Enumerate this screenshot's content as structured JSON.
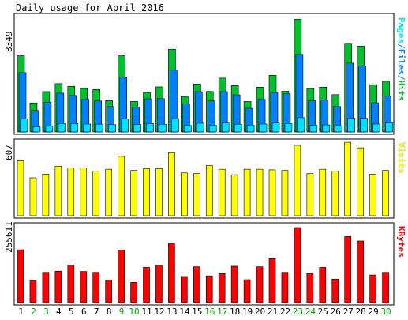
{
  "title": "Daily usage for April 2016",
  "colors": {
    "background": "#ffffff",
    "panel_border": "#000000",
    "hits": "#00c030",
    "files": "#0080ff",
    "pages": "#00e0ff",
    "visits": "#ffff00",
    "kbytes": "#ff0000",
    "weekend_label": "#00a000",
    "weekday_label": "#000000"
  },
  "chart_data": [
    {
      "type": "bar",
      "panel": "top",
      "ymax_label": "8349",
      "ymax": 8349,
      "legend": [
        {
          "text": "Pages",
          "color": "#00e0ff"
        },
        {
          "text": "/",
          "color": "#0080ff"
        },
        {
          "text": "Files",
          "color": "#0080ff"
        },
        {
          "text": "/",
          "color": "#0080ff"
        },
        {
          "text": "Hits",
          "color": "#00c030"
        }
      ],
      "categories": [
        "1",
        "2",
        "3",
        "4",
        "5",
        "6",
        "7",
        "8",
        "9",
        "10",
        "11",
        "12",
        "13",
        "14",
        "15",
        "16",
        "17",
        "18",
        "19",
        "20",
        "21",
        "22",
        "23",
        "24",
        "25",
        "26",
        "27",
        "28",
        "29",
        "30"
      ],
      "series": [
        {
          "name": "Hits",
          "values": [
            5480,
            2090,
            2900,
            3470,
            3280,
            3120,
            3050,
            2250,
            5480,
            2200,
            2840,
            3240,
            5950,
            2550,
            3450,
            2910,
            3870,
            3330,
            2190,
            3220,
            4070,
            2930,
            8110,
            3120,
            3220,
            2680,
            6320,
            6170,
            3400,
            3640
          ]
        },
        {
          "name": "Files",
          "values": [
            4270,
            1550,
            2140,
            2790,
            2620,
            2350,
            2230,
            1830,
            3950,
            1780,
            2380,
            2400,
            4450,
            2020,
            2900,
            2230,
            2900,
            2670,
            1700,
            2350,
            2840,
            2740,
            5580,
            2240,
            2300,
            1830,
            4950,
            4750,
            2100,
            2580
          ]
        },
        {
          "name": "Pages",
          "values": [
            950,
            380,
            440,
            590,
            600,
            570,
            560,
            530,
            940,
            540,
            600,
            550,
            960,
            470,
            630,
            480,
            640,
            560,
            490,
            570,
            640,
            590,
            1030,
            470,
            510,
            460,
            1000,
            980,
            570,
            650
          ]
        }
      ]
    },
    {
      "type": "bar",
      "panel": "middle",
      "ymax_label": "607",
      "ymax": 607,
      "legend": [
        {
          "text": "Visits",
          "color": "#ffff00"
        }
      ],
      "series": [
        {
          "name": "Visits",
          "values": [
            450,
            310,
            340,
            405,
            390,
            390,
            365,
            380,
            485,
            370,
            385,
            385,
            515,
            350,
            345,
            410,
            380,
            335,
            380,
            380,
            375,
            370,
            575,
            345,
            380,
            365,
            600,
            555,
            340,
            370
          ]
        }
      ]
    },
    {
      "type": "bar",
      "panel": "bottom",
      "ymax_label": "255611",
      "ymax": 255611,
      "legend": [
        {
          "text": "KBytes",
          "color": "#ff0000"
        }
      ],
      "series": [
        {
          "name": "KBytes",
          "values": [
            180000,
            74000,
            103000,
            107000,
            128000,
            106000,
            103000,
            77000,
            179000,
            69000,
            120000,
            127000,
            202000,
            89000,
            122000,
            91000,
            99000,
            124000,
            78000,
            122000,
            150000,
            103000,
            260000,
            99000,
            120000,
            80000,
            225000,
            210000,
            94000,
            103000
          ]
        }
      ]
    }
  ],
  "x_labels": {
    "days": [
      "1",
      "2",
      "3",
      "4",
      "5",
      "6",
      "7",
      "8",
      "9",
      "10",
      "11",
      "12",
      "13",
      "14",
      "15",
      "16",
      "17",
      "18",
      "19",
      "20",
      "21",
      "22",
      "23",
      "24",
      "25",
      "26",
      "27",
      "28",
      "29",
      "30"
    ],
    "weekend": [
      false,
      true,
      true,
      false,
      false,
      false,
      false,
      false,
      true,
      true,
      false,
      false,
      false,
      false,
      false,
      true,
      true,
      false,
      false,
      false,
      false,
      false,
      true,
      true,
      false,
      false,
      false,
      false,
      false,
      true
    ]
  }
}
